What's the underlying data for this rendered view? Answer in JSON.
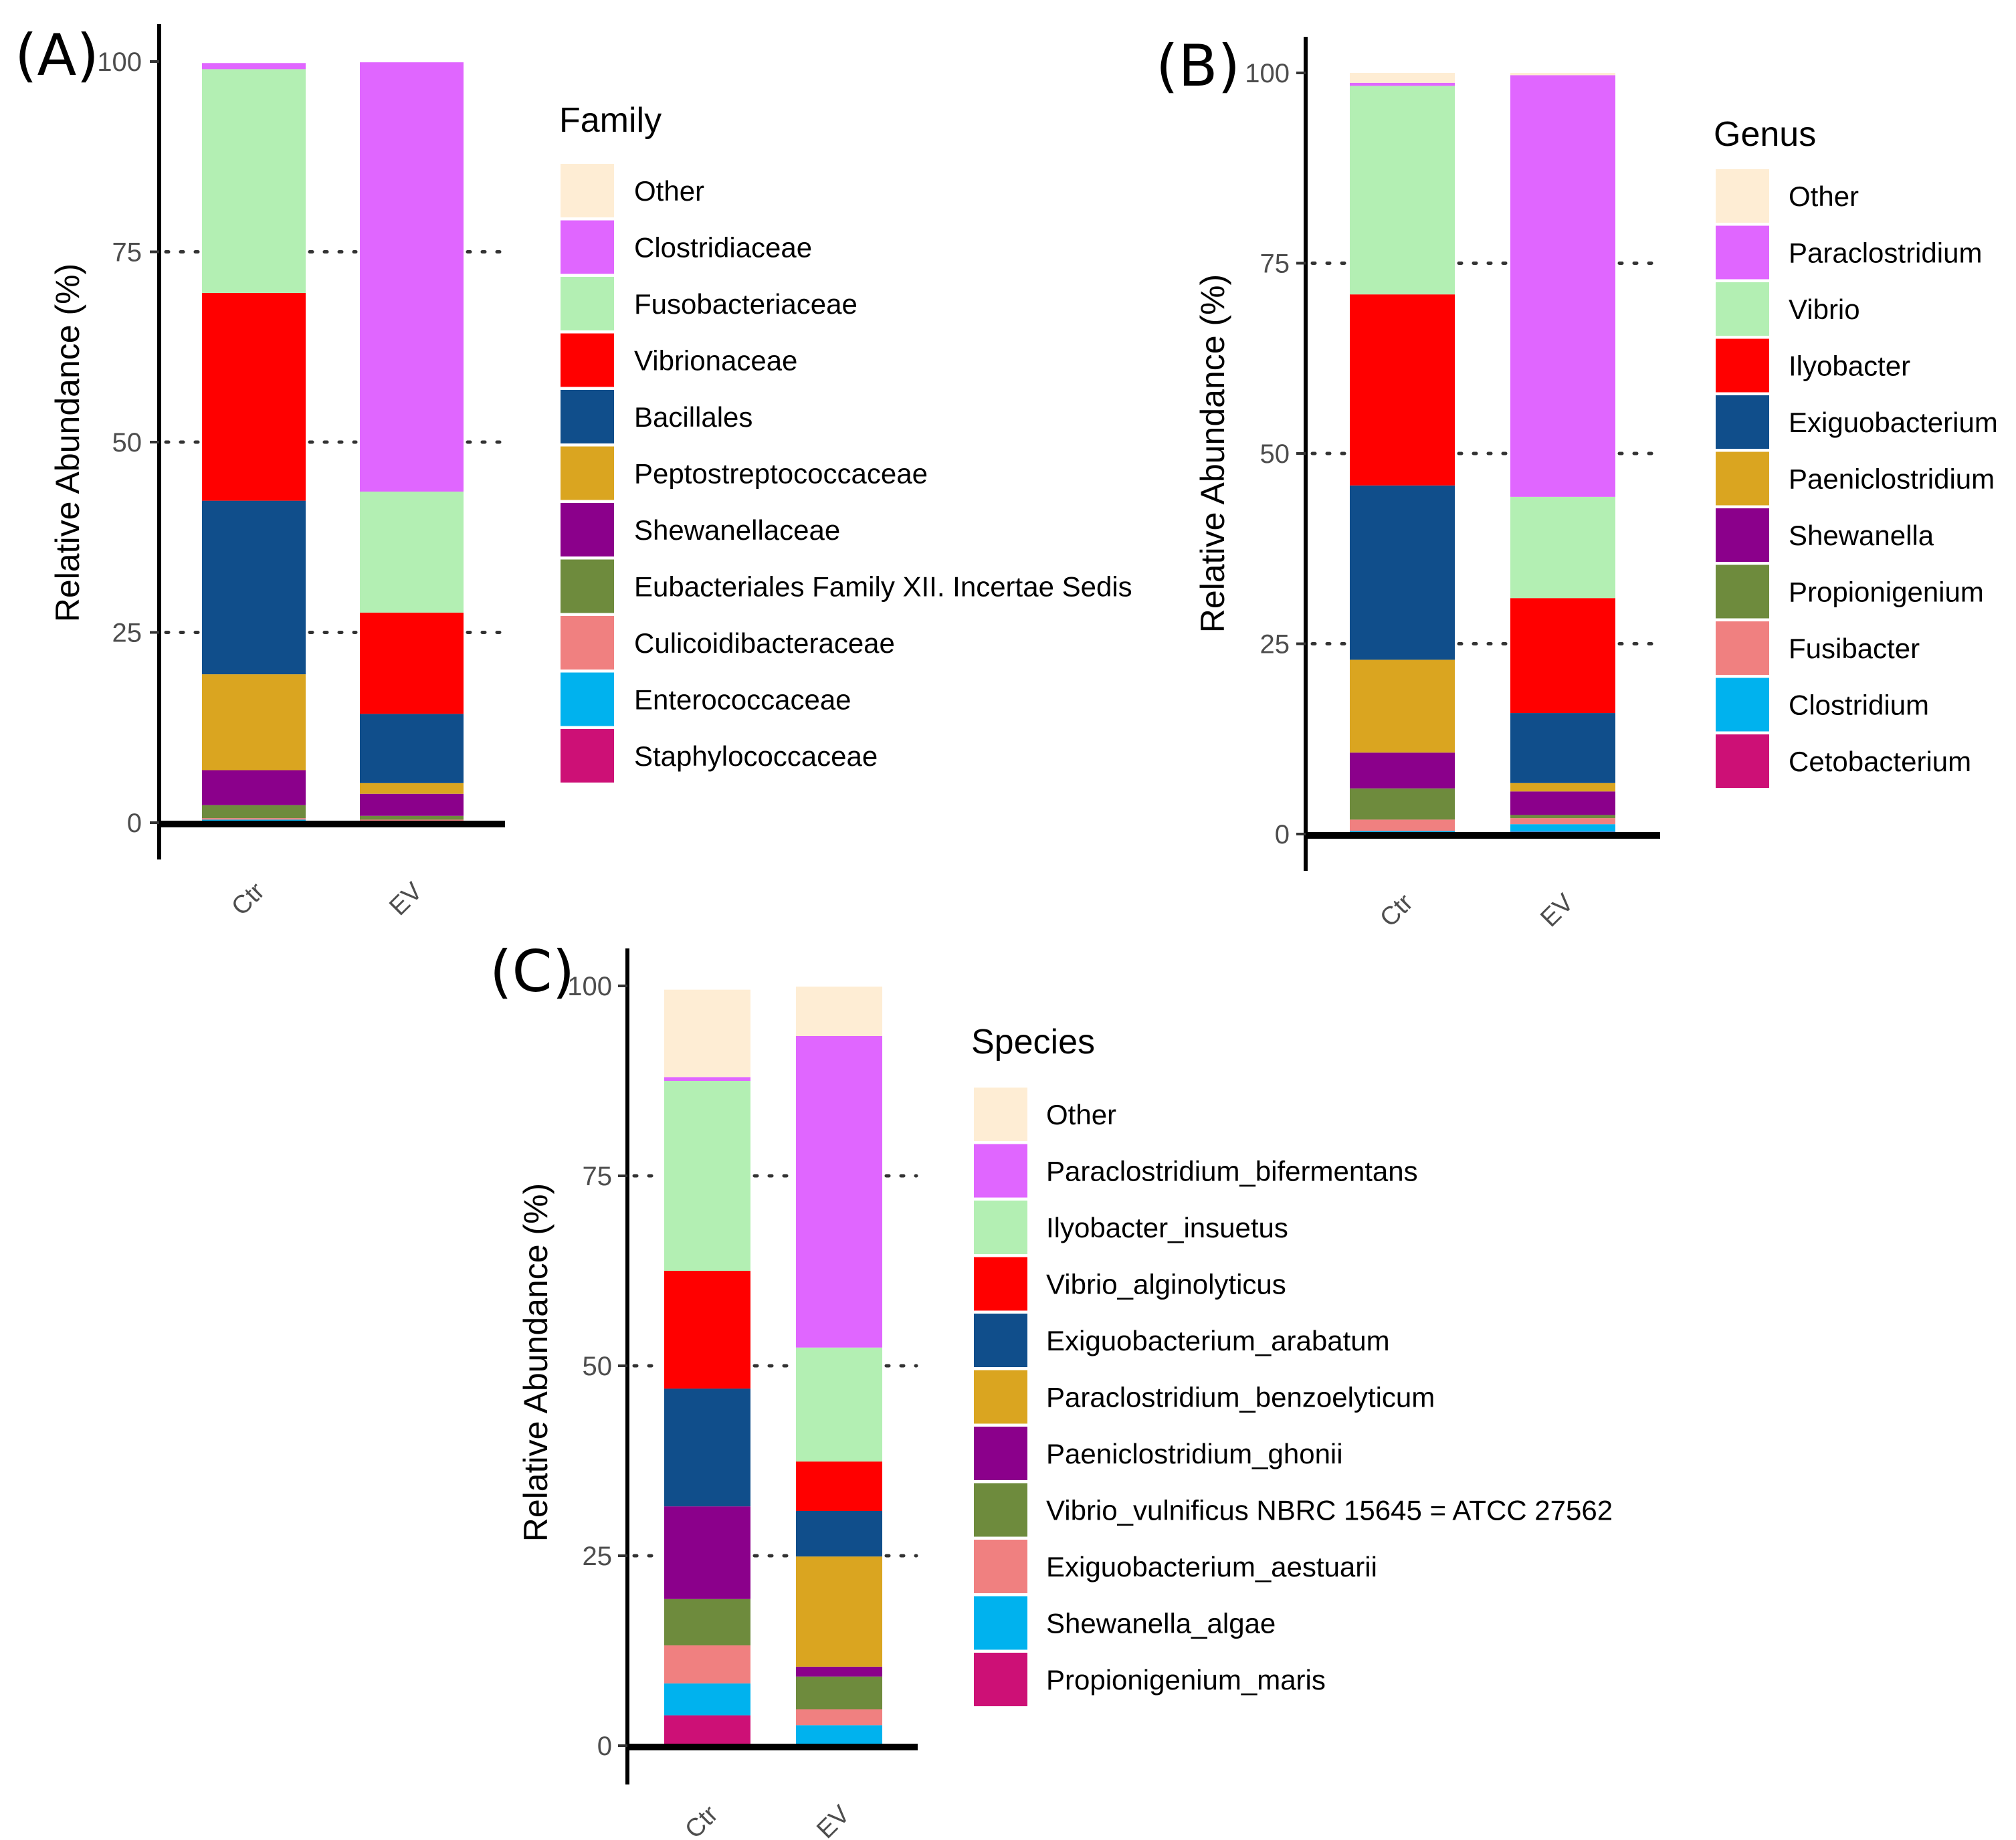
{
  "chart_data": [
    {
      "panel_label": "(A)",
      "type": "bar",
      "stacked": true,
      "ylabel": "Relative Abundance (%)",
      "ylim": [
        0,
        100
      ],
      "yticks": [
        0,
        25,
        50,
        75,
        100
      ],
      "categories": [
        "Ctr",
        "EV"
      ],
      "legend_title": "Family",
      "legend_position": "right",
      "grid": "dotted horizontal at 25, 50, 75",
      "series": [
        {
          "name": "Other",
          "color": "#FEEDD4",
          "values": [
            0.0,
            0.0
          ]
        },
        {
          "name": "Clostridiaceae",
          "color": "#E066FF",
          "values": [
            0.8,
            56.4
          ]
        },
        {
          "name": "Fusobacteriaceae",
          "color": "#B3EFB3",
          "values": [
            29.4,
            15.9
          ]
        },
        {
          "name": "Vibrionaceae",
          "color": "#FF0000",
          "values": [
            27.3,
            13.3
          ]
        },
        {
          "name": "Bacillales",
          "color": "#104E8B",
          "values": [
            22.8,
            9.1
          ]
        },
        {
          "name": "Peptostreptococcaceae",
          "color": "#DAA520",
          "values": [
            12.6,
            1.4
          ]
        },
        {
          "name": "Shewanellaceae",
          "color": "#8B008B",
          "values": [
            4.6,
            2.9
          ]
        },
        {
          "name": "Eubacteriales Family XII. Incertae Sedis",
          "color": "#6E8B3D",
          "values": [
            1.7,
            0.5
          ]
        },
        {
          "name": "Culicoidibacteraceae",
          "color": "#F08080",
          "values": [
            0.2,
            0.2
          ]
        },
        {
          "name": "Enterococcaceae",
          "color": "#00B2EE",
          "values": [
            0.2,
            0.1
          ]
        },
        {
          "name": "Staphylococcaceae",
          "color": "#CD1076",
          "values": [
            0.2,
            0.1
          ]
        }
      ]
    },
    {
      "panel_label": "(B)",
      "type": "bar",
      "stacked": true,
      "ylabel": "Relative Abundance (%)",
      "ylim": [
        0,
        100
      ],
      "yticks": [
        0,
        25,
        50,
        75,
        100
      ],
      "categories": [
        "Ctr",
        "EV"
      ],
      "legend_title": "Genus",
      "legend_position": "right",
      "grid": "dotted horizontal at 25, 50, 75",
      "series": [
        {
          "name": "Other",
          "color": "#FEEDD4",
          "values": [
            1.3,
            0.3
          ]
        },
        {
          "name": "Paraclostridium",
          "color": "#E066FF",
          "values": [
            0.4,
            55.4
          ]
        },
        {
          "name": "Vibrio",
          "color": "#B3EFB3",
          "values": [
            27.4,
            13.3
          ]
        },
        {
          "name": "Ilyobacter",
          "color": "#FF0000",
          "values": [
            25.1,
            15.1
          ]
        },
        {
          "name": "Exiguobacterium",
          "color": "#104E8B",
          "values": [
            22.9,
            9.2
          ]
        },
        {
          "name": "Paeniclostridium",
          "color": "#DAA520",
          "values": [
            12.2,
            1.1
          ]
        },
        {
          "name": "Shewanella",
          "color": "#8B008B",
          "values": [
            4.7,
            3.1
          ]
        },
        {
          "name": "Propionigenium",
          "color": "#6E8B3D",
          "values": [
            4.1,
            0.4
          ]
        },
        {
          "name": "Fusibacter",
          "color": "#F08080",
          "values": [
            1.5,
            0.8
          ]
        },
        {
          "name": "Clostridium",
          "color": "#00B2EE",
          "values": [
            0.3,
            1.0
          ]
        },
        {
          "name": "Cetobacterium",
          "color": "#CD1076",
          "values": [
            0.1,
            0.3
          ]
        }
      ]
    },
    {
      "panel_label": "(C)",
      "type": "bar",
      "stacked": true,
      "ylabel": "Relative Abundance (%)",
      "ylim": [
        0,
        100
      ],
      "yticks": [
        0,
        25,
        50,
        75,
        100
      ],
      "categories": [
        "Ctr",
        "EV"
      ],
      "legend_title": "Species",
      "legend_position": "right",
      "grid": "dotted horizontal at 25, 50, 75",
      "series": [
        {
          "name": "Other",
          "color": "#FEEDD4",
          "values": [
            11.5,
            6.5
          ]
        },
        {
          "name": "Paraclostridium_bifermentans",
          "color": "#E066FF",
          "values": [
            0.5,
            41.0
          ]
        },
        {
          "name": "Ilyobacter_insuetus",
          "color": "#B3EFB3",
          "values": [
            25.0,
            15.0
          ]
        },
        {
          "name": "Vibrio_alginolyticus",
          "color": "#FF0000",
          "values": [
            15.5,
            6.5
          ]
        },
        {
          "name": "Exiguobacterium_arabatum",
          "color": "#104E8B",
          "values": [
            15.5,
            6.0
          ]
        },
        {
          "name": "Paraclostridium_benzoelyticum",
          "color": "#DAA520",
          "values": [
            0.0,
            14.5
          ]
        },
        {
          "name": "Paeniclostridium_ghonii",
          "color": "#8B008B",
          "values": [
            12.2,
            1.3
          ]
        },
        {
          "name": "Vibrio_vulnificus NBRC 15645 = ATCC 27562",
          "color": "#6E8B3D",
          "values": [
            6.1,
            4.3
          ]
        },
        {
          "name": "Exiguobacterium_aestuarii",
          "color": "#F08080",
          "values": [
            5.0,
            2.1
          ]
        },
        {
          "name": "Shewanella_algae",
          "color": "#00B2EE",
          "values": [
            4.2,
            2.7
          ]
        },
        {
          "name": "Propionigenium_maris",
          "color": "#CD1076",
          "values": [
            4.0,
            0.0
          ]
        }
      ]
    }
  ]
}
